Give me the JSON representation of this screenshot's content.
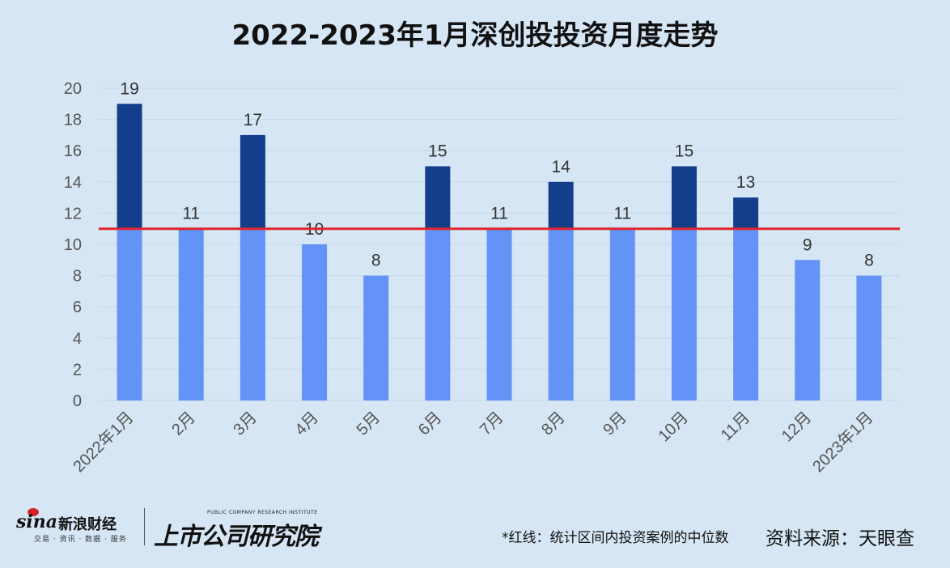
{
  "chart_data": {
    "type": "bar",
    "title": "2022-2023年1月深创投投资月度走势",
    "categories": [
      "2022年1月",
      "2月",
      "3月",
      "4月",
      "5月",
      "6月",
      "7月",
      "8月",
      "9月",
      "10月",
      "11月",
      "12月",
      "2023年1月"
    ],
    "values": [
      19,
      11,
      17,
      10,
      8,
      15,
      11,
      14,
      11,
      15,
      13,
      9,
      8
    ],
    "ylim": [
      0,
      20
    ],
    "yticks": [
      0,
      2,
      4,
      6,
      8,
      10,
      12,
      14,
      16,
      18,
      20
    ],
    "median_line": 11,
    "grid": true,
    "colors": {
      "below_median": "#6393f7",
      "above_median": "#133e8c",
      "median_line": "#e0242b",
      "grid": "#c8d8e6",
      "axis_text": "#555555",
      "label_text": "#333333"
    }
  },
  "footer": {
    "note": "*红线：统计区间内投资案例的中位数",
    "source": "资料来源：天眼查"
  },
  "logos": {
    "sina_brand": "sina",
    "sina_cn": "新浪财经",
    "sina_sub": "交易 · 资讯 · 数据 · 服务",
    "institute_en": "PUBLIC COMPANY RESEARCH INSTITUTE",
    "institute_cn": "上市公司研究院"
  }
}
